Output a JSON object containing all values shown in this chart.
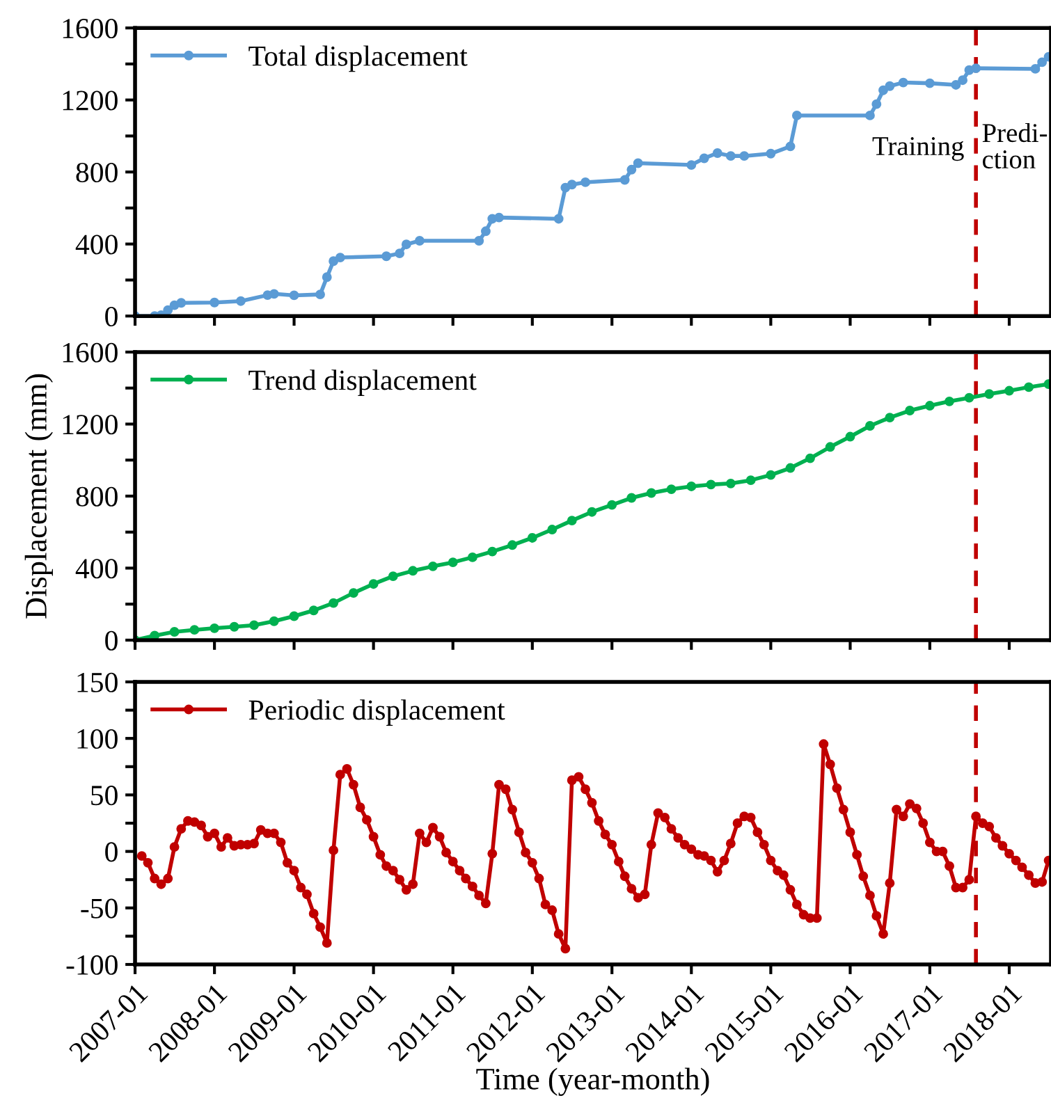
{
  "chart_data": [
    {
      "type": "line",
      "xlim": [
        "2007-01",
        "2018-07-12"
      ],
      "ylim": [
        0,
        1600
      ],
      "yticks": [
        0,
        {
          "value": 200,
          "label": null
        },
        400,
        {
          "value": 600,
          "label": null
        },
        800,
        {
          "value": 1000,
          "label": null
        },
        1200,
        {
          "value": 1400,
          "label": null
        },
        1600
      ],
      "xticks": [
        {
          "value": "2007-01",
          "label": null
        },
        {
          "value": "2008-01",
          "label": null
        },
        {
          "value": "2009-01",
          "label": null
        },
        {
          "value": "2010-01",
          "label": null
        },
        {
          "value": "2011-01",
          "label": null
        },
        {
          "value": "2012-01",
          "label": null
        },
        {
          "value": "2013-01",
          "label": null
        },
        {
          "value": "2014-01",
          "label": null
        },
        {
          "value": "2015-01",
          "label": null
        },
        {
          "value": "2016-01",
          "label": null
        },
        {
          "value": "2017-01",
          "label": null
        },
        {
          "value": "2018-01",
          "label": null
        }
      ],
      "tick_labels": "y",
      "legend": "top left",
      "marker": "circle",
      "line_style": "solid",
      "grid": false,
      "series": [
        {
          "name": "Total displacement",
          "color": "#5b9bd5",
          "x": [
            "2007-01",
            "2007-04",
            "2007-05",
            "2007-06",
            "2007-07",
            "2007-08",
            "2008-01",
            "2008-05",
            "2008-09",
            "2008-10",
            "2009-01",
            "2009-05",
            "2009-06",
            "2009-07",
            "2009-08",
            "2010-03",
            "2010-05",
            "2010-06",
            "2010-08",
            "2011-05",
            "2011-06",
            "2011-07",
            "2011-08",
            "2012-05",
            "2012-06",
            "2012-07",
            "2012-09",
            "2013-03",
            "2013-04",
            "2013-05",
            "2014-01",
            "2014-03",
            "2014-05",
            "2014-07",
            "2014-09",
            "2015-01",
            "2015-04",
            "2015-05",
            "2016-04",
            "2016-05",
            "2016-06",
            "2016-07",
            "2016-09",
            "2017-01",
            "2017-05",
            "2017-06",
            "2017-07",
            "2017-08",
            "2018-05",
            "2018-06",
            "2018-07"
          ],
          "values": [
            0,
            0,
            5,
            33,
            60,
            73,
            75,
            83,
            116,
            123,
            115,
            120,
            216,
            305,
            325,
            332,
            348,
            398,
            418,
            418,
            471,
            540,
            547,
            540,
            713,
            730,
            743,
            756,
            813,
            849,
            839,
            876,
            905,
            889,
            889,
            902,
            942,
            1114,
            1114,
            1177,
            1254,
            1277,
            1297,
            1293,
            1284,
            1310,
            1366,
            1376,
            1373,
            1410,
            1440
          ]
        }
      ],
      "ref_lines": [
        {
          "axis": "x",
          "value": "2017-08",
          "color": "#c00000",
          "line_style": "dashed"
        }
      ],
      "annotations": [
        {
          "text": "Training",
          "x": "2017-08",
          "y": 930
        },
        {
          "text": "Predi-\nction",
          "x": "2017-08",
          "y": 930
        }
      ]
    },
    {
      "type": "line",
      "xlim": [
        "2007-01",
        "2018-07-12"
      ],
      "ylim": [
        0,
        1600
      ],
      "yticks": [
        0,
        {
          "value": 200,
          "label": null
        },
        400,
        {
          "value": 600,
          "label": null
        },
        800,
        {
          "value": 1000,
          "label": null
        },
        1200,
        {
          "value": 1400,
          "label": null
        },
        1600
      ],
      "xticks": [
        {
          "value": "2007-01",
          "label": null
        },
        {
          "value": "2008-01",
          "label": null
        },
        {
          "value": "2009-01",
          "label": null
        },
        {
          "value": "2010-01",
          "label": null
        },
        {
          "value": "2011-01",
          "label": null
        },
        {
          "value": "2012-01",
          "label": null
        },
        {
          "value": "2013-01",
          "label": null
        },
        {
          "value": "2014-01",
          "label": null
        },
        {
          "value": "2015-01",
          "label": null
        },
        {
          "value": "2016-01",
          "label": null
        },
        {
          "value": "2017-01",
          "label": null
        },
        {
          "value": "2018-01",
          "label": null
        }
      ],
      "tick_labels": "y",
      "legend": "top left",
      "marker": "circle",
      "line_style": "solid",
      "grid": false,
      "ylabel": "Displacement (mm)",
      "series": [
        {
          "name": "Trend displacement",
          "color": "#00b050",
          "x": [
            "2007-01",
            "2007-04",
            "2007-07",
            "2007-10",
            "2008-01",
            "2008-04",
            "2008-07",
            "2008-10",
            "2009-01",
            "2009-04",
            "2009-07",
            "2009-10",
            "2010-01",
            "2010-04",
            "2010-07",
            "2010-10",
            "2011-01",
            "2011-04",
            "2011-07",
            "2011-10",
            "2012-01",
            "2012-04",
            "2012-07",
            "2012-10",
            "2013-01",
            "2013-04",
            "2013-07",
            "2013-10",
            "2014-01",
            "2014-04",
            "2014-07",
            "2014-10",
            "2015-01",
            "2015-04",
            "2015-07",
            "2015-10",
            "2016-01",
            "2016-04",
            "2016-07",
            "2016-10",
            "2017-01",
            "2017-04",
            "2017-07",
            "2017-10",
            "2018-01",
            "2018-04",
            "2018-07"
          ],
          "values": [
            0,
            25,
            46,
            57,
            66,
            74,
            83,
            105,
            133,
            165,
            206,
            262,
            312,
            355,
            385,
            410,
            432,
            460,
            492,
            528,
            568,
            614,
            664,
            712,
            751,
            790,
            817,
            838,
            854,
            864,
            870,
            888,
            917,
            956,
            1010,
            1073,
            1130,
            1190,
            1236,
            1275,
            1302,
            1326,
            1346,
            1367,
            1385,
            1405,
            1422
          ]
        }
      ],
      "ref_lines": [
        {
          "axis": "x",
          "value": "2017-08",
          "color": "#c00000",
          "line_style": "dashed"
        }
      ]
    },
    {
      "type": "line",
      "xlim": [
        "2007-01",
        "2018-07-12"
      ],
      "ylim": [
        -100,
        150
      ],
      "yticks": [
        -100,
        {
          "value": -75,
          "label": null
        },
        -50,
        {
          "value": -25,
          "label": null
        },
        0,
        {
          "value": 25,
          "label": null
        },
        50,
        {
          "value": 75,
          "label": null
        },
        100,
        {
          "value": 125,
          "label": null
        },
        150
      ],
      "xticks": [
        "2007-01",
        "2008-01",
        "2009-01",
        "2010-01",
        "2011-01",
        "2012-01",
        "2013-01",
        "2014-01",
        "2015-01",
        "2016-01",
        "2017-01",
        "2018-01"
      ],
      "legend": "top left",
      "marker": "circle",
      "line_style": "solid",
      "grid": false,
      "xlabel": "Time (year-month)",
      "series": [
        {
          "name": "Periodic displacement",
          "color": "#c00000",
          "x": [
            "2007-02",
            "2007-03",
            "2007-04",
            "2007-05",
            "2007-06",
            "2007-07",
            "2007-08",
            "2007-09",
            "2007-10",
            "2007-11",
            "2007-12",
            "2008-01",
            "2008-02",
            "2008-03",
            "2008-04",
            "2008-05",
            "2008-06",
            "2008-07",
            "2008-08",
            "2008-09",
            "2008-10",
            "2008-11",
            "2008-12",
            "2009-01",
            "2009-02",
            "2009-03",
            "2009-04",
            "2009-05",
            "2009-06",
            "2009-07",
            "2009-08",
            "2009-09",
            "2009-10",
            "2009-11",
            "2009-12",
            "2010-01",
            "2010-02",
            "2010-03",
            "2010-04",
            "2010-05",
            "2010-06",
            "2010-07",
            "2010-08",
            "2010-09",
            "2010-10",
            "2010-11",
            "2010-12",
            "2011-01",
            "2011-02",
            "2011-03",
            "2011-04",
            "2011-05",
            "2011-06",
            "2011-07",
            "2011-08",
            "2011-09",
            "2011-10",
            "2011-11",
            "2011-12",
            "2012-01",
            "2012-02",
            "2012-03",
            "2012-04",
            "2012-05",
            "2012-06",
            "2012-07",
            "2012-08",
            "2012-09",
            "2012-10",
            "2012-11",
            "2012-12",
            "2013-01",
            "2013-02",
            "2013-03",
            "2013-04",
            "2013-05",
            "2013-06",
            "2013-07",
            "2013-08",
            "2013-09",
            "2013-10",
            "2013-11",
            "2013-12",
            "2014-01",
            "2014-02",
            "2014-03",
            "2014-04",
            "2014-05",
            "2014-06",
            "2014-07",
            "2014-08",
            "2014-09",
            "2014-10",
            "2014-11",
            "2014-12",
            "2015-01",
            "2015-02",
            "2015-03",
            "2015-04",
            "2015-05",
            "2015-06",
            "2015-07",
            "2015-08",
            "2015-09",
            "2015-10",
            "2015-11",
            "2015-12",
            "2016-01",
            "2016-02",
            "2016-03",
            "2016-04",
            "2016-05",
            "2016-06",
            "2016-07",
            "2016-08",
            "2016-09",
            "2016-10",
            "2016-11",
            "2016-12",
            "2017-01",
            "2017-02",
            "2017-03",
            "2017-04",
            "2017-05",
            "2017-06",
            "2017-07",
            "2017-08",
            "2017-09",
            "2017-10",
            "2017-11",
            "2017-12",
            "2018-01",
            "2018-02",
            "2018-03",
            "2018-04",
            "2018-05",
            "2018-06",
            "2018-07"
          ],
          "values": [
            -4,
            -10,
            -24,
            -29,
            -24,
            4,
            20,
            27,
            26,
            23,
            13,
            16,
            4,
            12,
            5,
            6,
            6,
            7,
            19,
            16,
            16,
            8,
            -10,
            -17,
            -32,
            -38,
            -55,
            -67,
            -81,
            1,
            68,
            73,
            59,
            39,
            28,
            13,
            -3,
            -13,
            -17,
            -25,
            -34,
            -29,
            16,
            8,
            21,
            13,
            -1,
            -9,
            -17,
            -24,
            -31,
            -39,
            -46,
            -2,
            59,
            55,
            37,
            17,
            -1,
            -10,
            -24,
            -47,
            -52,
            -73,
            -86,
            63,
            66,
            55,
            43,
            27,
            15,
            6,
            -9,
            -22,
            -33,
            -41,
            -38,
            6,
            34,
            30,
            20,
            12,
            6,
            2,
            -3,
            -4,
            -8,
            -18,
            -8,
            7,
            25,
            31,
            30,
            17,
            6,
            -8,
            -17,
            -21,
            -34,
            -47,
            -56,
            -59,
            -59,
            95,
            77,
            56,
            37,
            17,
            -3,
            -22,
            -39,
            -57,
            -73,
            -28,
            37,
            31,
            42,
            38,
            25,
            8,
            0,
            0,
            -13,
            -32,
            -32,
            -25,
            31,
            25,
            22,
            12,
            5,
            -2,
            -8,
            -14,
            -21,
            -28,
            -27,
            -8
          ]
        }
      ],
      "ref_lines": [
        {
          "axis": "x",
          "value": "2017-08",
          "color": "#c00000",
          "line_style": "dashed"
        }
      ]
    }
  ]
}
